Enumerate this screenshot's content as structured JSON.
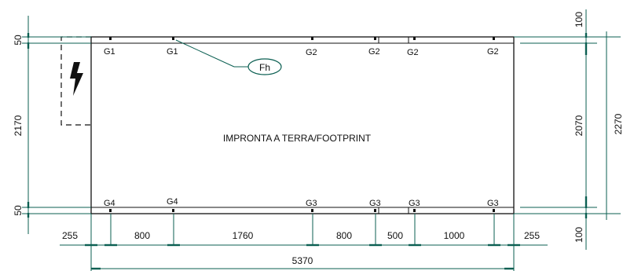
{
  "footprint_label": "IMPRONTA A TERRA/FOOTPRINT",
  "callout_label": "Fh",
  "icon": "lightning-bolt-icon",
  "colors": {
    "dimension": "#0b5f52",
    "outline": "#111111"
  },
  "top_points": [
    "G1",
    "G1",
    "G2",
    "G2",
    "G2",
    "G2"
  ],
  "bottom_points": [
    "G4",
    "G4",
    "G3",
    "G3",
    "G3",
    "G3"
  ],
  "left_dims": {
    "top": "50",
    "middle": "2170",
    "bottom": "50"
  },
  "right_dims": {
    "top": "100",
    "inner": "2070",
    "outer": "2270",
    "bottom": "100"
  },
  "bottom_dims": [
    "255",
    "800",
    "1760",
    "800",
    "500",
    "1000",
    "255"
  ],
  "overall_dim": "5370"
}
